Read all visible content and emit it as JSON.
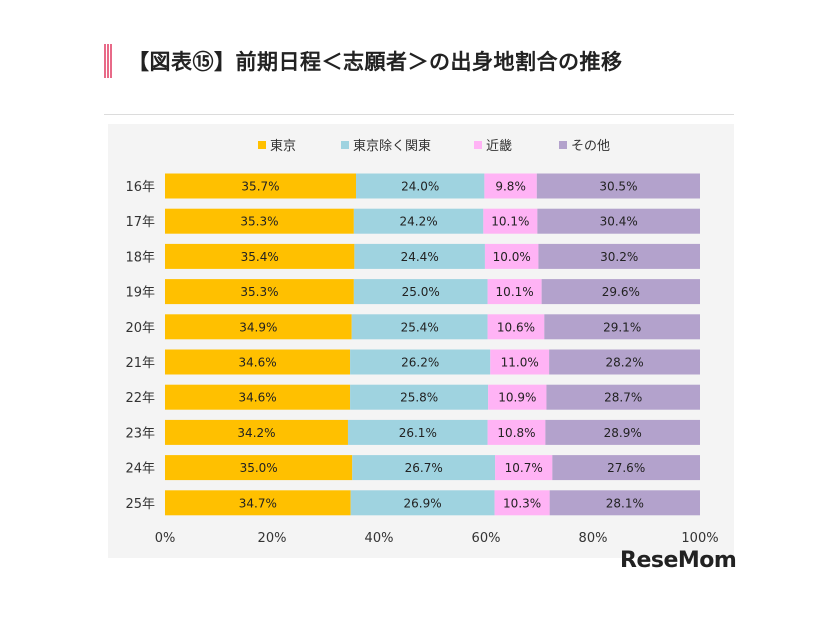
{
  "title": "【図表⑮】前期日程＜志願者＞の出身地割合の推移",
  "logo": "ReseMom",
  "chart_data": {
    "type": "bar",
    "orientation": "horizontal",
    "stacked": true,
    "categories": [
      "16年",
      "17年",
      "18年",
      "19年",
      "20年",
      "21年",
      "22年",
      "23年",
      "24年",
      "25年"
    ],
    "series": [
      {
        "name": "東京",
        "color": "#ffc000",
        "values": [
          35.7,
          35.3,
          35.4,
          35.3,
          34.9,
          34.6,
          34.6,
          34.2,
          35.0,
          34.7
        ]
      },
      {
        "name": "東京除く関東",
        "color": "#9fd3e0",
        "values": [
          24.0,
          24.2,
          24.4,
          25.0,
          25.4,
          26.2,
          25.8,
          26.1,
          26.7,
          26.9
        ]
      },
      {
        "name": "近畿",
        "color": "#ffb3f5",
        "values": [
          9.8,
          10.1,
          10.0,
          10.1,
          10.6,
          11.0,
          10.9,
          10.8,
          10.7,
          10.3
        ]
      },
      {
        "name": "その他",
        "color": "#b3a2cc",
        "values": [
          30.5,
          30.4,
          30.2,
          29.6,
          29.1,
          28.2,
          28.7,
          28.9,
          27.6,
          28.1
        ]
      }
    ],
    "value_suffix": "%",
    "xlim": [
      0,
      100
    ],
    "xticks": [
      "0%",
      "20%",
      "40%",
      "60%",
      "80%",
      "100%"
    ],
    "legend_position": "top"
  }
}
